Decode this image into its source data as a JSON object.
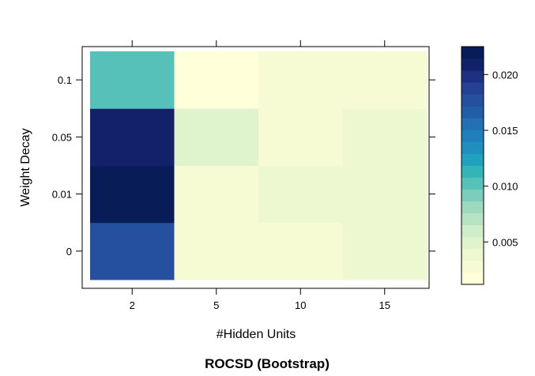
{
  "chart_data": {
    "type": "heatmap",
    "title": "ROCSD (Bootstrap)",
    "xlabel": "#Hidden Units",
    "ylabel": "Weight Decay",
    "x_categories": [
      "2",
      "5",
      "10",
      "15"
    ],
    "y_categories": [
      "0",
      "0.01",
      "0.05",
      "0.1"
    ],
    "values": [
      [
        0.018,
        0.003,
        0.003,
        0.0043
      ],
      [
        0.0225,
        0.003,
        0.004,
        0.004
      ],
      [
        0.0205,
        0.0045,
        0.003,
        0.004
      ],
      [
        0.01,
        0.0015,
        0.003,
        0.003
      ]
    ],
    "colorbar": {
      "range": [
        0.0012,
        0.0225
      ],
      "ticks": [
        0.005,
        0.01,
        0.015,
        0.02
      ],
      "tick_labels": [
        "0.005",
        "0.010",
        "0.015",
        "0.020"
      ],
      "colors": [
        "#FFFFD9",
        "#F6FBD4",
        "#EDF8D0",
        "#DFF3CD",
        "#D0EDCA",
        "#B7E3C4",
        "#9DD9BF",
        "#7BCEBB",
        "#56C1B8",
        "#33B4B7",
        "#1FA2BE",
        "#1D90C0",
        "#2080BB",
        "#2270B5",
        "#225EA8",
        "#24509F",
        "#254195",
        "#1D3082",
        "#13216B",
        "#081D58"
      ]
    }
  }
}
